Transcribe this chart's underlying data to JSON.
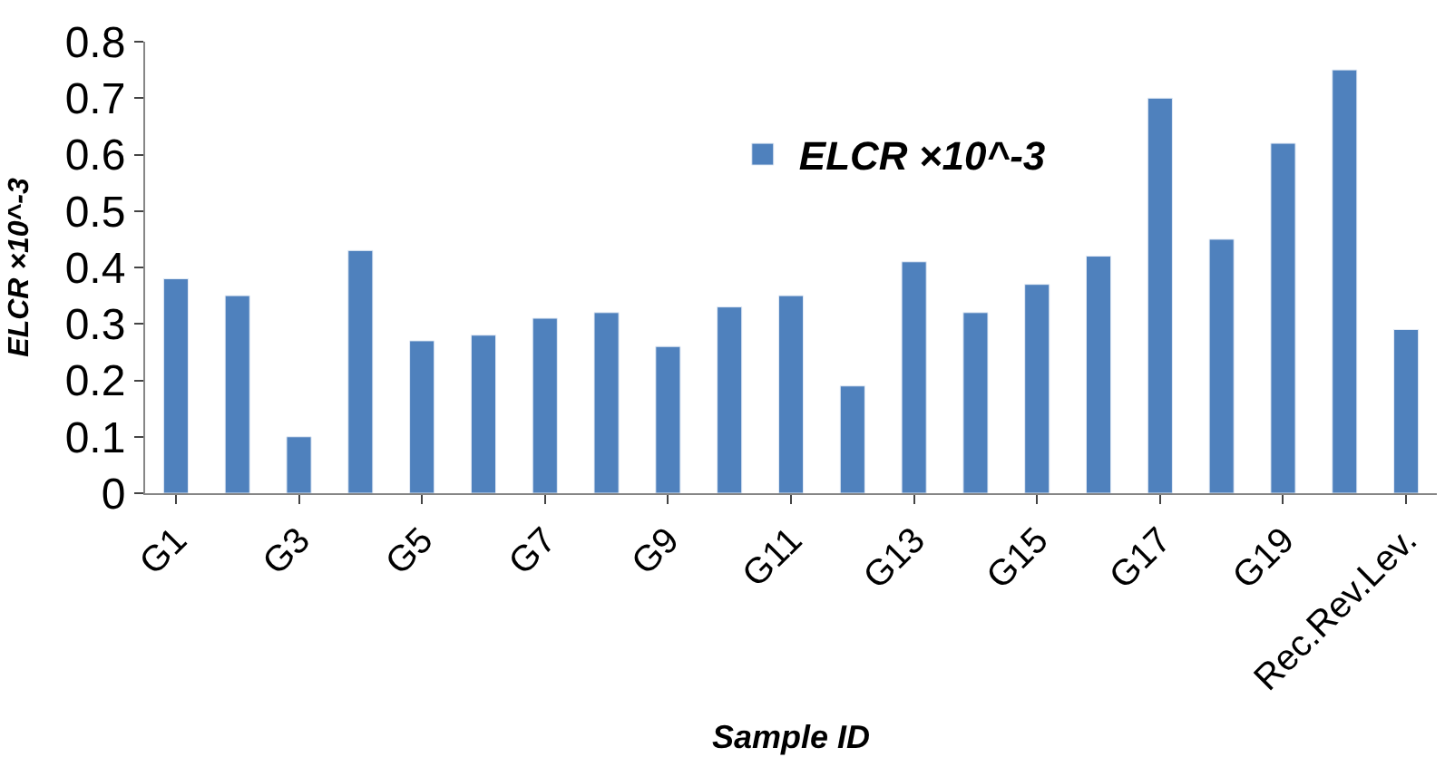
{
  "chart_data": {
    "type": "bar",
    "xlabel": "Sample ID",
    "ylabel": "ELCR ×10^-3",
    "categories": [
      "G1",
      null,
      "G3",
      null,
      "G5",
      null,
      "G7",
      null,
      "G9",
      null,
      "G11",
      null,
      "G13",
      null,
      "G15",
      null,
      "G17",
      null,
      "G19",
      null,
      "Rec.Rev.Lev."
    ],
    "series": [
      {
        "name": "ELCR ×10^-3",
        "color": "#4f81bd",
        "values": [
          0.38,
          0.35,
          0.1,
          0.43,
          0.27,
          0.28,
          0.31,
          0.32,
          0.26,
          0.33,
          0.35,
          0.19,
          0.41,
          0.32,
          0.37,
          0.42,
          0.7,
          0.45,
          0.62,
          0.75,
          0.29
        ]
      }
    ],
    "ylim": [
      0,
      0.8
    ],
    "yticks": [
      0,
      0.1,
      0.2,
      0.3,
      0.4,
      0.5,
      0.6,
      0.7,
      0.8
    ],
    "legend": "top"
  }
}
